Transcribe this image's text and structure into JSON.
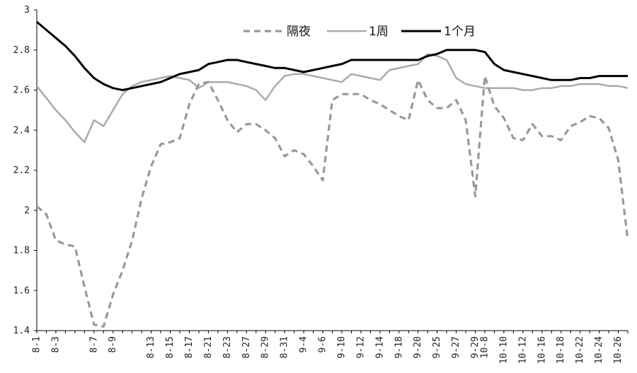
{
  "chart_data": {
    "type": "line",
    "title": "",
    "xlabel": "",
    "ylabel": "",
    "ylim": [
      1.4,
      3.0
    ],
    "yticks": [
      1.4,
      1.6,
      1.8,
      2.0,
      2.2,
      2.4,
      2.6,
      2.8,
      3.0
    ],
    "ytick_labels": [
      "1.4",
      "1.6",
      "1.8",
      "2",
      "2.2",
      "2.4",
      "2.6",
      "2.8",
      "3"
    ],
    "grid": false,
    "legend_position": "top-center",
    "categories": [
      "8-1",
      "8-2",
      "8-3",
      "8-4",
      "8-5",
      "8-6",
      "8-7",
      "8-8",
      "8-9",
      "8-10",
      "8-11",
      "8-12",
      "8-13",
      "8-14",
      "8-15",
      "8-16",
      "8-17",
      "8-20",
      "8-21",
      "8-22",
      "8-23",
      "8-24",
      "8-27",
      "8-28",
      "8-29",
      "8-30",
      "8-31",
      "9-3",
      "9-4",
      "9-5",
      "9-6",
      "9-7",
      "9-10",
      "9-11",
      "9-12",
      "9-13",
      "9-14",
      "9-17",
      "9-18",
      "9-19",
      "9-20",
      "9-21",
      "9-25",
      "9-26",
      "9-27",
      "9-28",
      "9-29",
      "10-8",
      "10-9",
      "10-10",
      "10-11",
      "10-12",
      "10-15",
      "10-16",
      "10-17",
      "10-18",
      "10-19",
      "10-22",
      "10-23",
      "10-24",
      "10-25",
      "10-26",
      "10-29"
    ],
    "xtick_labels": [
      "8-1",
      "8-3",
      "8-7",
      "8-9",
      "8-13",
      "8-15",
      "8-17",
      "8-21",
      "8-23",
      "8-27",
      "8-29",
      "8-31",
      "9-4",
      "9-6",
      "9-10",
      "9-12",
      "9-14",
      "9-18",
      "9-20",
      "9-25",
      "9-27",
      "9-29",
      "10-8",
      "10-10",
      "10-12",
      "10-16",
      "10-18",
      "10-22",
      "10-24",
      "10-26"
    ],
    "series": [
      {
        "name": "隔夜",
        "style": "dashed",
        "color": "#999999",
        "values": [
          2.02,
          1.98,
          1.85,
          1.83,
          1.82,
          1.62,
          1.43,
          1.42,
          1.58,
          1.7,
          1.85,
          2.06,
          2.22,
          2.33,
          2.34,
          2.36,
          2.53,
          2.63,
          2.64,
          2.55,
          2.45,
          2.39,
          2.43,
          2.43,
          2.4,
          2.36,
          2.27,
          2.3,
          2.28,
          2.22,
          2.15,
          2.55,
          2.58,
          2.58,
          2.58,
          2.55,
          2.53,
          2.5,
          2.47,
          2.45,
          2.65,
          2.55,
          2.51,
          2.51,
          2.55,
          2.45,
          2.07,
          2.67,
          2.52,
          2.46,
          2.36,
          2.35,
          2.43,
          2.37,
          2.37,
          2.35,
          2.42,
          2.44,
          2.47,
          2.46,
          2.41,
          2.25,
          1.85
        ]
      },
      {
        "name": "1周",
        "style": "solid",
        "color": "#aaaaaa",
        "values": [
          2.62,
          2.56,
          2.5,
          2.45,
          2.39,
          2.34,
          2.45,
          2.42,
          2.5,
          2.58,
          2.62,
          2.64,
          2.65,
          2.66,
          2.67,
          2.66,
          2.65,
          2.61,
          2.64,
          2.64,
          2.64,
          2.63,
          2.62,
          2.6,
          2.55,
          2.62,
          2.67,
          2.68,
          2.68,
          2.67,
          2.66,
          2.65,
          2.64,
          2.68,
          2.67,
          2.66,
          2.65,
          2.7,
          2.71,
          2.72,
          2.73,
          2.78,
          2.77,
          2.75,
          2.66,
          2.63,
          2.62,
          2.61,
          2.61,
          2.61,
          2.61,
          2.6,
          2.6,
          2.61,
          2.61,
          2.62,
          2.62,
          2.63,
          2.63,
          2.63,
          2.62,
          2.62,
          2.61
        ]
      },
      {
        "name": "1个月",
        "style": "solid",
        "color": "#000000",
        "values": [
          2.94,
          2.9,
          2.86,
          2.82,
          2.77,
          2.71,
          2.66,
          2.63,
          2.61,
          2.6,
          2.61,
          2.62,
          2.63,
          2.64,
          2.66,
          2.68,
          2.69,
          2.7,
          2.73,
          2.74,
          2.75,
          2.75,
          2.74,
          2.73,
          2.72,
          2.71,
          2.71,
          2.7,
          2.69,
          2.7,
          2.71,
          2.72,
          2.73,
          2.75,
          2.75,
          2.75,
          2.75,
          2.75,
          2.75,
          2.75,
          2.75,
          2.77,
          2.78,
          2.8,
          2.8,
          2.8,
          2.8,
          2.79,
          2.73,
          2.7,
          2.69,
          2.68,
          2.67,
          2.66,
          2.65,
          2.65,
          2.65,
          2.66,
          2.66,
          2.67,
          2.67,
          2.67,
          2.67
        ]
      }
    ]
  }
}
